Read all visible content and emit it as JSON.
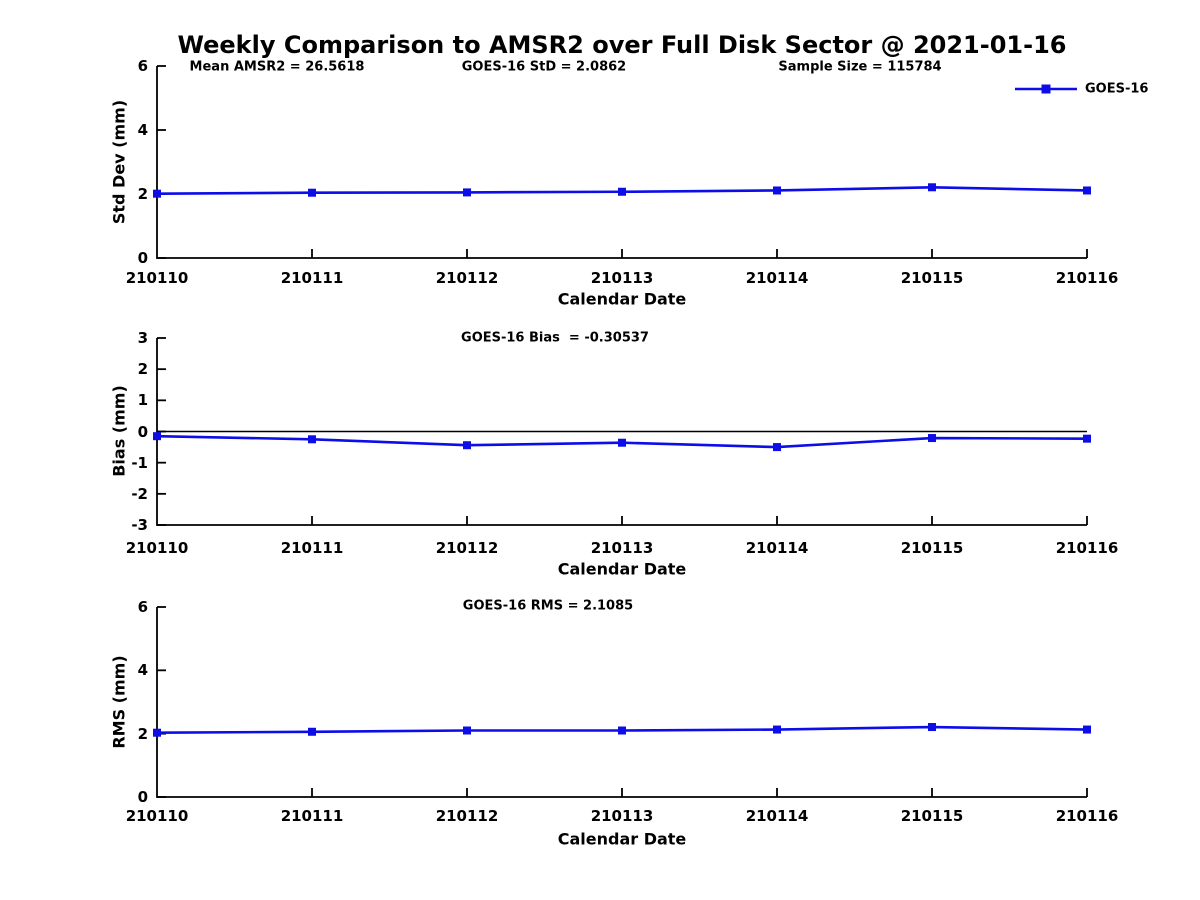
{
  "title": "Weekly Comparison to AMSR2 over Full Disk Sector @ 2021-01-16",
  "legend": {
    "label": "GOES-16"
  },
  "colors": {
    "line": "#0d0de8",
    "axis": "#000000",
    "zero_line": "#000000",
    "text": "#000000",
    "background": "#ffffff"
  },
  "chart_data": [
    {
      "type": "line",
      "categories": [
        "210110",
        "210111",
        "210112",
        "210113",
        "210114",
        "210115",
        "210116"
      ],
      "series": [
        {
          "name": "GOES-16",
          "values": [
            2.01,
            2.04,
            2.05,
            2.07,
            2.11,
            2.21,
            2.11
          ]
        }
      ],
      "xlabel": "Calendar Date",
      "ylabel": "Std Dev (mm)",
      "ylim": [
        0,
        6
      ],
      "yticks": [
        0,
        2,
        4,
        6
      ],
      "annotations": [
        "Mean AMSR2 = 26.5618",
        "GOES-16 StD = 2.0862",
        "Sample Size = 115784"
      ],
      "legend_entry": "GOES-16",
      "legend_position": "upper-right",
      "grid": false,
      "zero_line": false
    },
    {
      "type": "line",
      "categories": [
        "210110",
        "210111",
        "210112",
        "210113",
        "210114",
        "210115",
        "210116"
      ],
      "series": [
        {
          "name": "GOES-16",
          "values": [
            -0.15,
            -0.25,
            -0.44,
            -0.36,
            -0.5,
            -0.21,
            -0.23
          ]
        }
      ],
      "xlabel": "Calendar Date",
      "ylabel": "Bias (mm)",
      "ylim": [
        -3,
        3
      ],
      "yticks": [
        -3,
        -2,
        -1,
        0,
        1,
        2,
        3
      ],
      "annotations": [
        "GOES-16 Bias  = -0.30537"
      ],
      "grid": false,
      "zero_line": true
    },
    {
      "type": "line",
      "categories": [
        "210110",
        "210111",
        "210112",
        "210113",
        "210114",
        "210115",
        "210116"
      ],
      "series": [
        {
          "name": "GOES-16",
          "values": [
            2.03,
            2.06,
            2.1,
            2.1,
            2.13,
            2.21,
            2.13
          ]
        }
      ],
      "xlabel": "Calendar Date",
      "ylabel": "RMS (mm)",
      "ylim": [
        0,
        6
      ],
      "yticks": [
        0,
        2,
        4,
        6
      ],
      "annotations": [
        "GOES-16 RMS = 2.1085"
      ],
      "grid": false,
      "zero_line": false
    }
  ]
}
